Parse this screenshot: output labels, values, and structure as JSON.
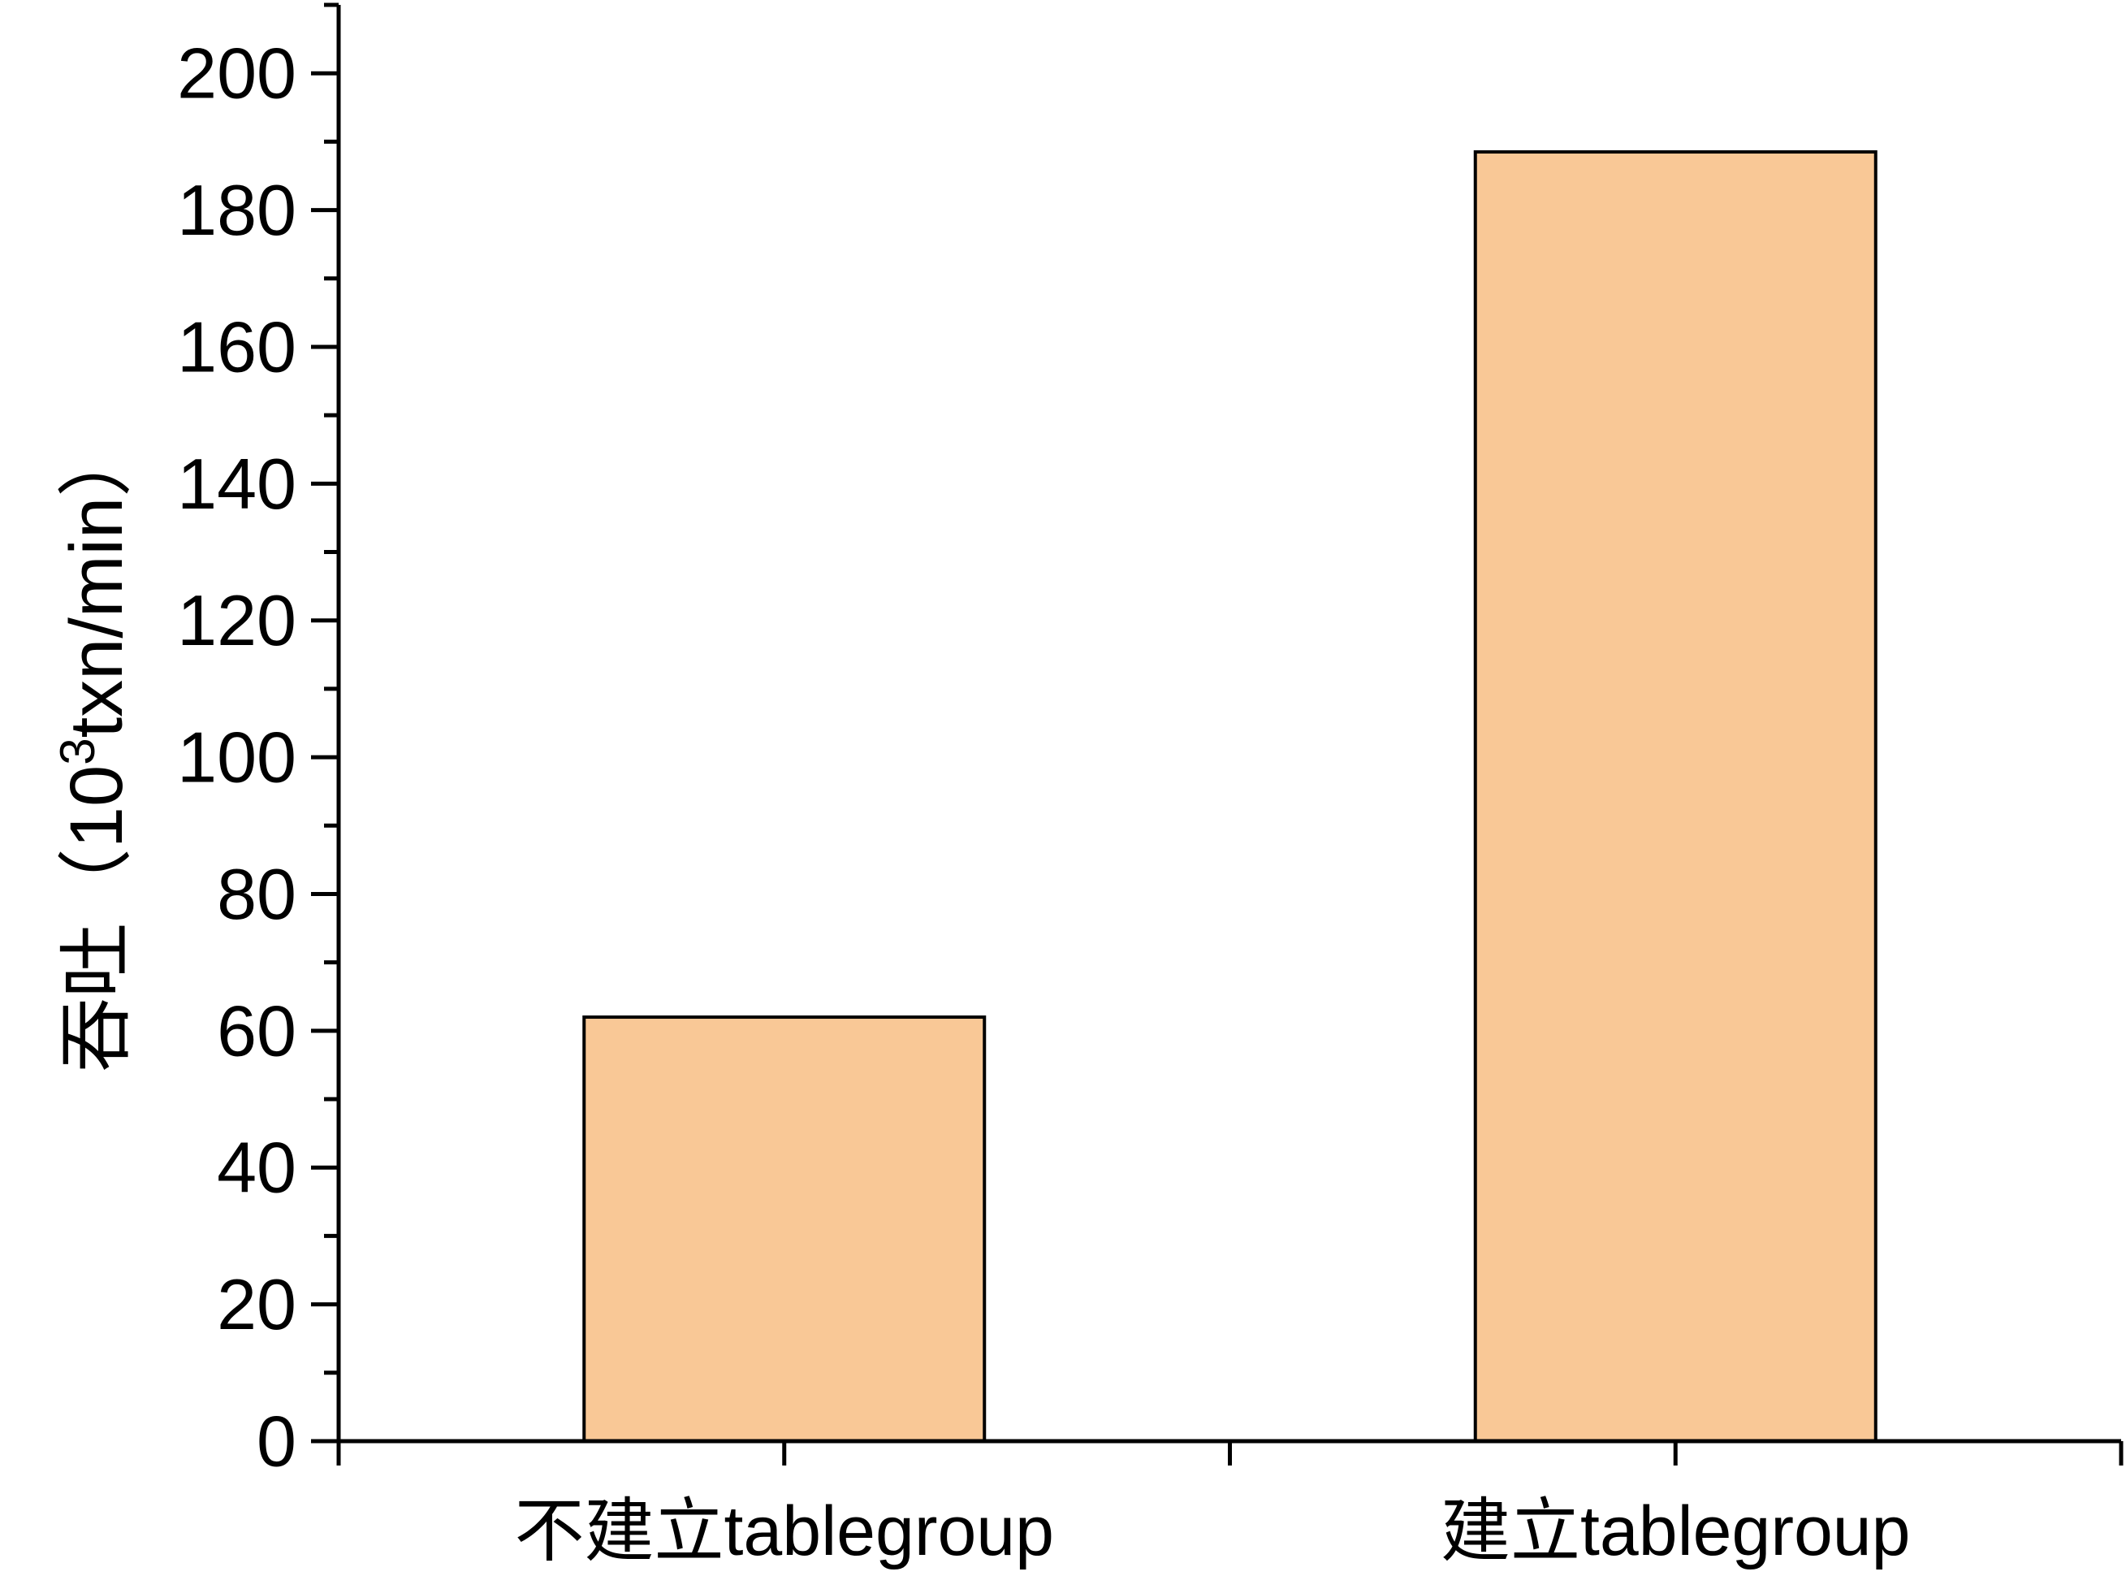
{
  "chart_data": {
    "type": "bar",
    "categories": [
      "不建立tablegroup",
      "建立tablegroup"
    ],
    "values": [
      62,
      188.5
    ],
    "title": "",
    "xlabel": "",
    "ylabel": "吞吐（10³txn/min）",
    "ylabel_parts": {
      "prefix": "吞吐（10",
      "superscript": "3",
      "suffix": "txn/min）"
    },
    "ylim": [
      0,
      210
    ],
    "yticks": [
      0,
      20,
      40,
      60,
      80,
      100,
      120,
      140,
      160,
      180,
      200
    ],
    "ytick_labels": [
      "0",
      "20",
      "40",
      "60",
      "80",
      "100",
      "120",
      "140",
      "160",
      "180",
      "200"
    ],
    "grid": false,
    "legend": "none",
    "colors": {
      "bar_fill": "#F9C896",
      "bar_stroke": "#000000",
      "axis": "#000000"
    }
  }
}
